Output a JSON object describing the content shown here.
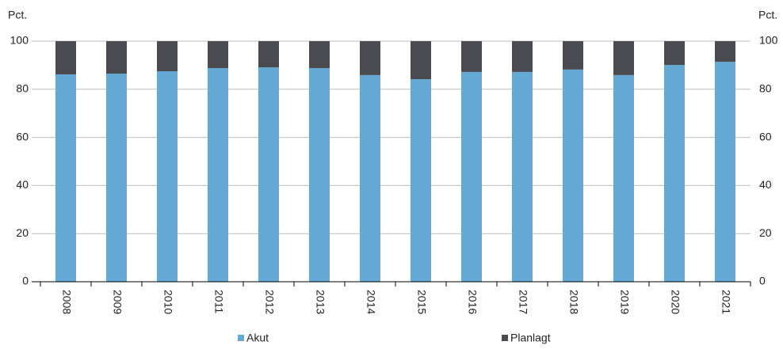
{
  "chart_data": {
    "type": "stacked_bar",
    "y_label": "Pct.",
    "y2_label": "Pct.",
    "categories": [
      "2008",
      "2009",
      "2010",
      "2011",
      "2012",
      "2013",
      "2014",
      "2015",
      "2016",
      "2017",
      "2018",
      "2019",
      "2020",
      "2021"
    ],
    "series": [
      {
        "name": "Akut",
        "color": "#63a9d4",
        "values": [
          86.2,
          86.5,
          87.5,
          88.8,
          89.1,
          88.8,
          85.9,
          84.2,
          87.2,
          87.2,
          88.2,
          85.9,
          90.1,
          91.4
        ]
      },
      {
        "name": "Planlagt",
        "color": "#4a4b50",
        "values": [
          13.8,
          13.5,
          12.5,
          11.2,
          10.9,
          11.2,
          14.1,
          15.8,
          12.8,
          12.8,
          11.8,
          14.1,
          9.9,
          8.6
        ]
      }
    ],
    "ylim": [
      0,
      100
    ],
    "yticks": [
      0,
      20,
      40,
      60,
      80,
      100
    ],
    "y2lim": [
      0,
      100
    ],
    "y2ticks": [
      0,
      20,
      40,
      60,
      80,
      100
    ],
    "grid": true
  }
}
